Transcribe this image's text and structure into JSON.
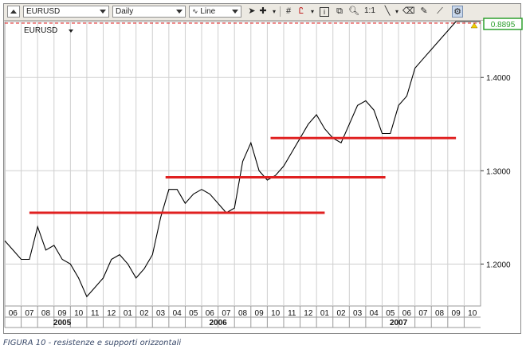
{
  "toolbar": {
    "symbol": "EURUSD",
    "timeframe": "Daily",
    "chart_type": "Line",
    "zoom_label": "1:1"
  },
  "chart_label": "EURUSD",
  "last_price": "0.8895",
  "caption": "FIGURA 10 - resistenze e supporti orizzontali",
  "colors": {
    "series": "#000000",
    "level_lines": "#e02020",
    "last_price_badge": "#2ea02e",
    "grid": "#cfcfcf"
  },
  "chart_data": {
    "type": "line",
    "x_ticks": [
      "06",
      "07",
      "08",
      "09",
      "10",
      "11",
      "12",
      "01",
      "02",
      "03",
      "04",
      "05",
      "06",
      "07",
      "08",
      "09",
      "10",
      "11",
      "12",
      "01",
      "02",
      "03",
      "04",
      "05",
      "06",
      "07",
      "08",
      "09",
      "10"
    ],
    "years": [
      "2005",
      "2006",
      "2007"
    ],
    "y_ticks": [
      1.2,
      1.3,
      1.4
    ],
    "y_tick_labels": [
      "1.2000",
      "1.3000",
      "1.4000"
    ],
    "ylim": [
      1.155,
      1.46
    ],
    "grid": true,
    "x_months": [
      0,
      0.5,
      1,
      1.5,
      2,
      2.5,
      3,
      3.5,
      4,
      4.5,
      5,
      5.5,
      6,
      6.5,
      7,
      7.5,
      8,
      8.5,
      9,
      9.5,
      10,
      10.5,
      11,
      11.5,
      12,
      12.5,
      13,
      13.5,
      14,
      14.5,
      15,
      15.5,
      16,
      16.5,
      17,
      17.5,
      18,
      18.5,
      19,
      19.5,
      20,
      20.5,
      21,
      21.5,
      22,
      22.5,
      23,
      23.5,
      24,
      24.5,
      25,
      25.5,
      26,
      26.5,
      27,
      27.5,
      28,
      28.5,
      29
    ],
    "values": [
      1.225,
      1.215,
      1.205,
      1.205,
      1.24,
      1.215,
      1.22,
      1.205,
      1.2,
      1.185,
      1.165,
      1.175,
      1.185,
      1.205,
      1.21,
      1.2,
      1.185,
      1.195,
      1.21,
      1.25,
      1.28,
      1.28,
      1.265,
      1.275,
      1.28,
      1.275,
      1.265,
      1.255,
      1.26,
      1.31,
      1.33,
      1.3,
      1.29,
      1.295,
      1.305,
      1.32,
      1.335,
      1.35,
      1.36,
      1.345,
      1.335,
      1.33,
      1.35,
      1.37,
      1.375,
      1.365,
      1.34,
      1.34,
      1.37,
      1.38,
      1.41,
      1.42,
      1.43,
      1.44,
      1.45,
      1.46,
      1.47,
      1.48,
      1.49
    ],
    "horizontal_levels": [
      {
        "value": 1.255,
        "x_start": 1.5,
        "x_end": 19.5
      },
      {
        "value": 1.293,
        "x_start": 9.8,
        "x_end": 23.2
      },
      {
        "value": 1.335,
        "x_start": 16.2,
        "x_end": 27.5
      }
    ]
  }
}
